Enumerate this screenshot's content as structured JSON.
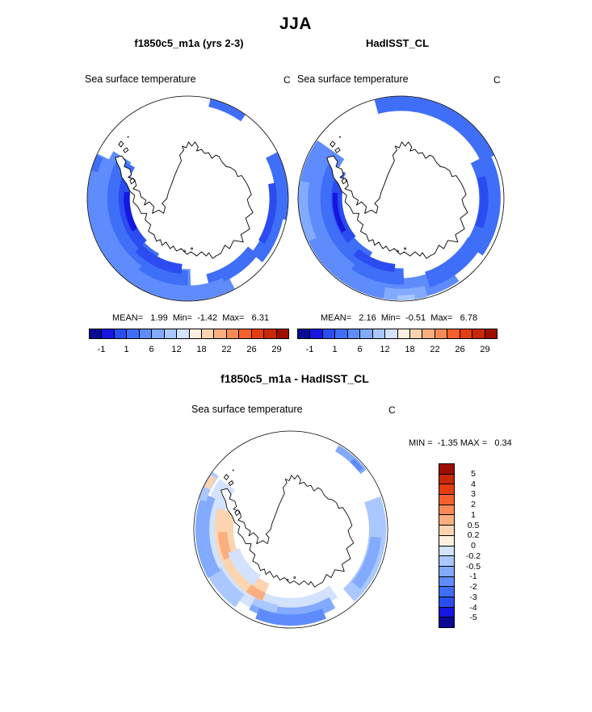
{
  "page": {
    "title": "JJA"
  },
  "panels": {
    "model": {
      "title": "f1850c5_m1a (yrs 2-3)",
      "variable": "Sea surface temperature",
      "units": "C",
      "stats": "MEAN=   1.99  Min=  -1.42  Max=   6.31"
    },
    "obs": {
      "title": "HadISST_CL",
      "variable": "Sea surface temperature",
      "units": "C",
      "stats": "MEAN=   2.16  Min=  -0.51  Max=   6.78"
    },
    "diff": {
      "title": "f1850c5_m1a - HadISST_CL",
      "variable": "Sea surface temperature",
      "units": "C",
      "stats": "MIN =  -1.35 MAX =   0.34"
    }
  },
  "colorbar": {
    "colors": [
      "#0a0a96",
      "#1616e0",
      "#2a4cf0",
      "#3f6ef8",
      "#5f8cfc",
      "#82aaff",
      "#aac8ff",
      "#d2e2ff",
      "#fdf0de",
      "#fcd5b0",
      "#fbaf80",
      "#f98a56",
      "#f4602c",
      "#e63d10",
      "#c92806",
      "#9e0e00"
    ],
    "tick_labels": [
      "-1",
      "1",
      "6",
      "12",
      "18",
      "22",
      "26",
      "29"
    ]
  },
  "diff_colorbar": {
    "colors": [
      "#9e0e00",
      "#c92806",
      "#e63d10",
      "#f4602c",
      "#f98a56",
      "#fbaf80",
      "#fcd5b0",
      "#fdf0de",
      "#d2e2ff",
      "#aac8ff",
      "#82aaff",
      "#5f8cfc",
      "#3f6ef8",
      "#2a4cf0",
      "#1616e0",
      "#0a0a96"
    ],
    "tick_labels": [
      "5",
      "4",
      "3",
      "2",
      "1",
      "0.5",
      "0.2",
      "0",
      "-0.2",
      "-0.5",
      "-1",
      "-2",
      "-3",
      "-4",
      "-5"
    ]
  },
  "chart_data": {
    "type": "heatmap",
    "title": "JJA",
    "subtitle": "South polar stereographic maps of sea surface temperature (model vs HadISST climatology and their difference)",
    "grid": false,
    "panels": [
      {
        "name": "f1850c5_m1a (yrs 2-3)",
        "variable": "Sea surface temperature",
        "units": "C",
        "projection": "south-polar",
        "stats": {
          "mean": 1.99,
          "min": -1.42,
          "max": 6.31
        },
        "colorbar_tick_values": [
          -1,
          1,
          6,
          12,
          18,
          22,
          26,
          29
        ],
        "colorbar_cells": 16,
        "legend_position": "below"
      },
      {
        "name": "HadISST_CL",
        "variable": "Sea surface temperature",
        "units": "C",
        "projection": "south-polar",
        "stats": {
          "mean": 2.16,
          "min": -0.51,
          "max": 6.78
        },
        "colorbar_tick_values": [
          -1,
          1,
          6,
          12,
          18,
          22,
          26,
          29
        ],
        "colorbar_cells": 16,
        "legend_position": "below"
      },
      {
        "name": "f1850c5_m1a - HadISST_CL",
        "variable": "Sea surface temperature",
        "units": "C",
        "projection": "south-polar",
        "stats": {
          "min": -1.35,
          "max": 0.34
        },
        "colorbar_tick_values": [
          5,
          4,
          3,
          2,
          1,
          0.5,
          0.2,
          0,
          -0.2,
          -0.5,
          -1,
          -2,
          -3,
          -4,
          -5
        ],
        "colorbar_cells": 16,
        "legend_position": "right"
      }
    ]
  }
}
